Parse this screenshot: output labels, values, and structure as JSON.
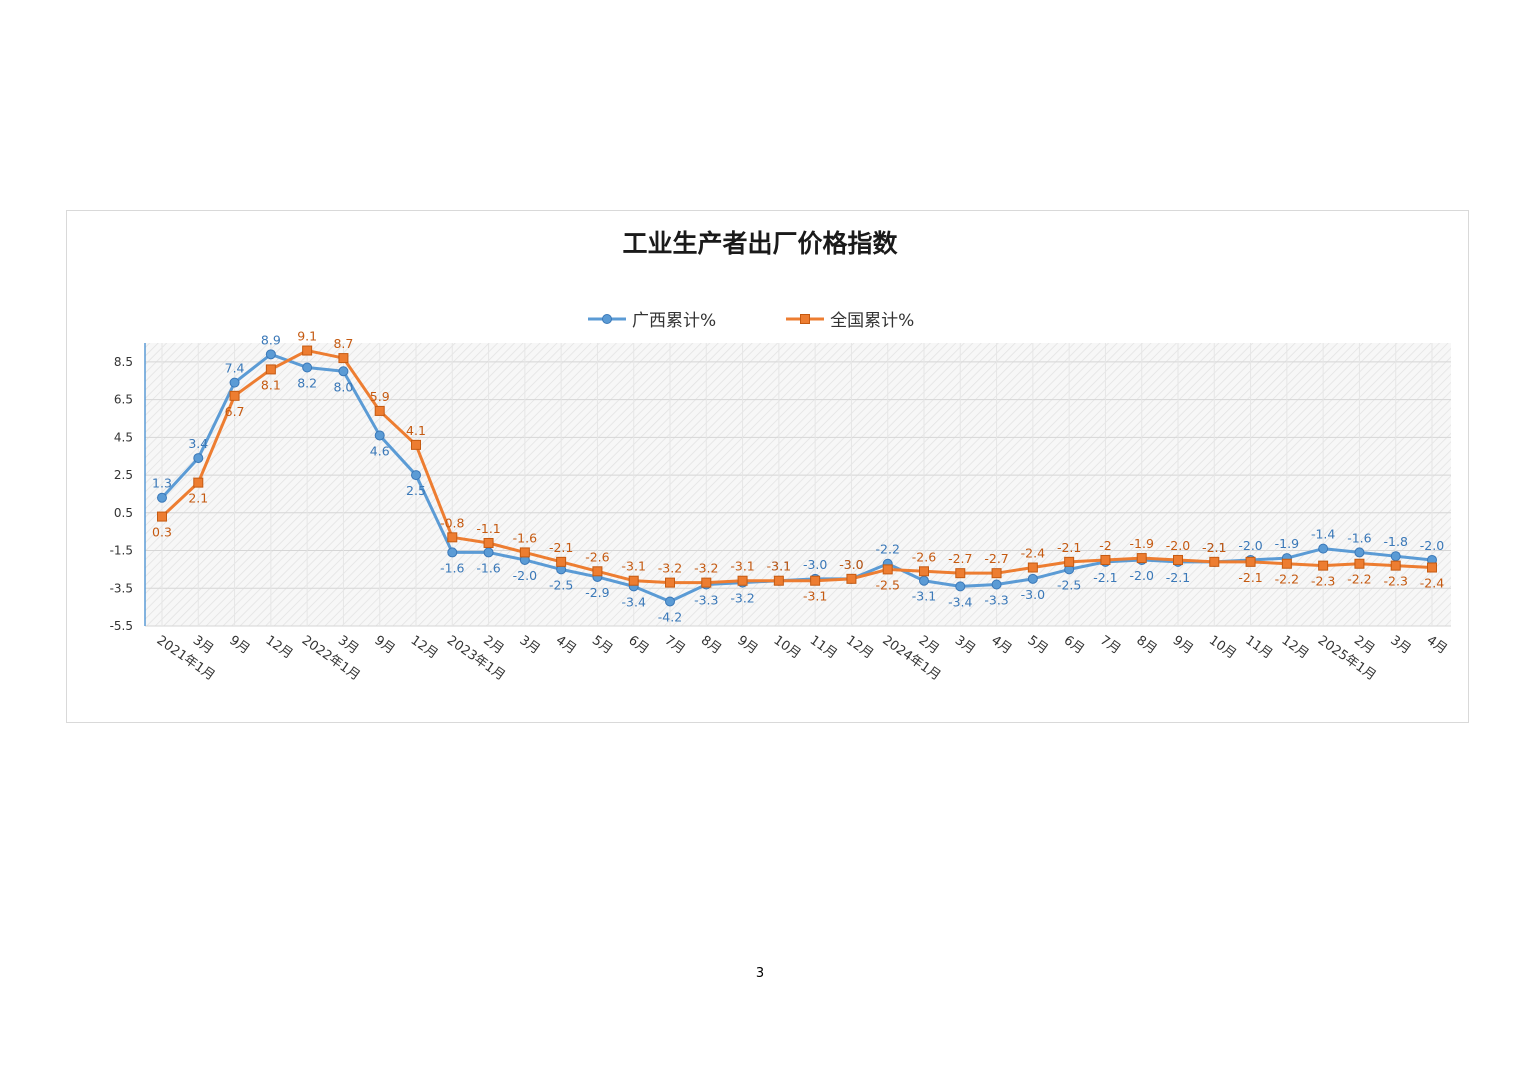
{
  "page": {
    "number": "3"
  },
  "colors": {
    "guangxi": "#5b9bd5",
    "guangxi_label": "#3a78b8",
    "national": "#ed7d31",
    "national_label": "#c55a11",
    "axis_text": "#333333"
  },
  "chart_data": {
    "type": "line",
    "title": "工业生产者出厂价格指数",
    "xlabel": "",
    "ylabel": "",
    "ylim": [
      -5.5,
      9.5
    ],
    "yticks": [
      "8.5",
      "6.5",
      "4.5",
      "2.5",
      "0.5",
      "-1.5",
      "-3.5",
      "-5.5"
    ],
    "ytick_values": [
      8.5,
      6.5,
      4.5,
      2.5,
      0.5,
      -1.5,
      -3.5,
      -5.5
    ],
    "grid": true,
    "legend_position": "top-center",
    "categories": [
      "2021年1月",
      "3月",
      "9月",
      "12月",
      "2022年1月",
      "3月",
      "9月",
      "12月",
      "2023年1月",
      "2月",
      "3月",
      "4月",
      "5月",
      "6月",
      "7月",
      "8月",
      "9月",
      "10月",
      "11月",
      "12月",
      "2024年1月",
      "2月",
      "3月",
      "4月",
      "5月",
      "6月",
      "7月",
      "8月",
      "9月",
      "10月",
      "11月",
      "12月",
      "2025年1月",
      "2月",
      "3月",
      "4月"
    ],
    "series": [
      {
        "name": "广西累计%",
        "marker": "circle",
        "values": [
          1.3,
          3.4,
          7.4,
          8.9,
          8.2,
          8.0,
          4.6,
          2.5,
          -1.6,
          -1.6,
          -2.0,
          -2.5,
          -2.9,
          -3.4,
          -4.2,
          -3.3,
          -3.2,
          -3.1,
          -3.0,
          -3.0,
          -2.2,
          -3.1,
          -3.4,
          -3.3,
          -3.0,
          -2.5,
          -2.1,
          -2.0,
          -2.1,
          -2.1,
          -2.0,
          -1.9,
          -1.4,
          -1.6,
          -1.8,
          -2.0
        ],
        "labels": [
          "1.3",
          "3.4",
          "7.4",
          "8.9",
          "8.2",
          "8.0",
          "4.6",
          "2.5",
          "-1.6",
          "-1.6",
          "-2.0",
          "-2.5",
          "-2.9",
          "-3.4",
          "-4.2",
          "-3.3",
          "-3.2",
          "-3.1",
          "-3.0",
          "-3.0",
          "-2.2",
          "-3.1",
          "-3.4",
          "-3.3",
          "-3.0",
          "-2.5",
          "-2.1",
          "-2.0",
          "-2.1",
          "-2.1",
          "-2.0",
          "-1.9",
          "-1.4",
          "-1.6",
          "-1.8",
          "-2.0"
        ]
      },
      {
        "name": "全国累计%",
        "marker": "square",
        "values": [
          0.3,
          2.1,
          6.7,
          8.1,
          9.1,
          8.7,
          5.9,
          4.1,
          -0.8,
          -1.1,
          -1.6,
          -2.1,
          -2.6,
          -3.1,
          -3.2,
          -3.2,
          -3.1,
          -3.1,
          -3.1,
          -3.0,
          -2.5,
          -2.6,
          -2.7,
          -2.7,
          -2.4,
          -2.1,
          -2.0,
          -1.9,
          -2.0,
          -2.1,
          -2.1,
          -2.2,
          -2.3,
          -2.2,
          -2.3,
          -2.4
        ],
        "labels": [
          "0.3",
          "2.1",
          "6.7",
          "8.1",
          "9.1",
          "8.7",
          "5.9",
          "4.1",
          "-0.8",
          "-1.1",
          "-1.6",
          "-2.1",
          "-2.6",
          "-3.1",
          "-3.2",
          "-3.2",
          "-3.1",
          "-3.1",
          "-3.1",
          "-3.0",
          "-2.5",
          "-2.6",
          "-2.7",
          "-2.7",
          "-2.4",
          "-2.1",
          "-2",
          "-1.9",
          "-2.0",
          "-2.1",
          "-2.1",
          "-2.2",
          "-2.3",
          "-2.2",
          "-2.3",
          "-2.4"
        ]
      }
    ]
  }
}
